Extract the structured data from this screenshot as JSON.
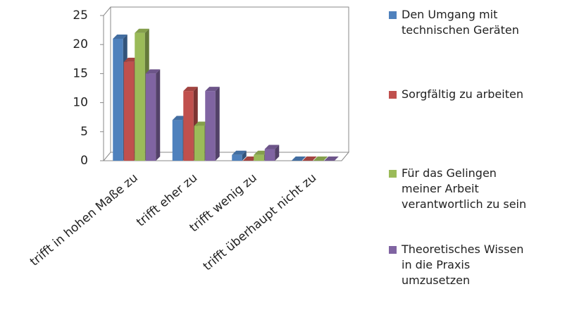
{
  "chart_data": {
    "type": "bar3d",
    "categories": [
      "trifft in hohen Maße zu",
      "trifft eher zu",
      "trifft wenig zu",
      "trifft überhaupt nicht zu"
    ],
    "series": [
      {
        "name": "Den Umgang mit technischen Geräten",
        "color": "#4f81bd",
        "values": [
          21,
          7,
          1,
          0
        ]
      },
      {
        "name": "Sorgfältig zu arbeiten",
        "color": "#c0504d",
        "values": [
          17,
          12,
          0,
          0
        ]
      },
      {
        "name": "Für das Gelingen meiner Arbeit verantwortlich zu sein",
        "color": "#9bbb59",
        "values": [
          22,
          6,
          1,
          0
        ]
      },
      {
        "name": "Theoretisches Wissen in die Praxis umzusetzen",
        "color": "#8064a2",
        "values": [
          15,
          12,
          2,
          0
        ]
      }
    ],
    "ylim": [
      0,
      25
    ],
    "yticks": [
      0,
      5,
      10,
      15,
      20,
      25
    ],
    "legend": "right"
  }
}
